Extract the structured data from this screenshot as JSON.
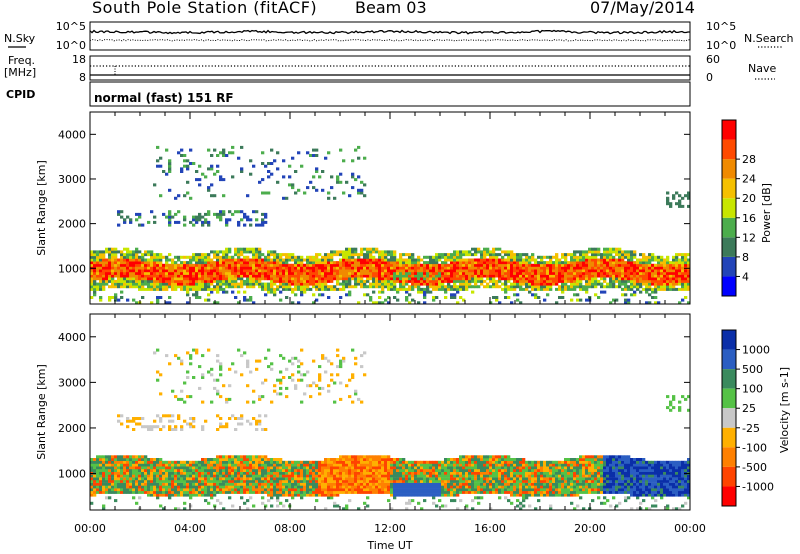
{
  "header": {
    "station": "South Pole Station (fitACF)",
    "beam": "Beam 03",
    "date": "07/May/2014"
  },
  "chart_data": [
    {
      "type": "line",
      "panel": "noise",
      "left_label": "N.Sky",
      "right_label": "N.Search",
      "yticks_left": [
        "10^5",
        "10^0"
      ],
      "yticks_right": [
        "10^5",
        "10^0"
      ]
    },
    {
      "type": "line",
      "panel": "frequency",
      "left_label_top": "Freq.",
      "left_label_bottom": "[MHz]",
      "right_label": "Nave",
      "yticks_left": [
        "18",
        "8"
      ],
      "yticks_right": [
        "60",
        "0"
      ]
    },
    {
      "type": "table",
      "panel": "cpid",
      "label": "CPID",
      "text": "normal (fast) 151 RF"
    },
    {
      "type": "heatmap",
      "panel": "power",
      "ylabel": "Slant Range [km]",
      "ylim": [
        200,
        4500
      ],
      "yticks": [
        1000,
        2000,
        3000,
        4000
      ],
      "xlim": [
        0,
        24
      ],
      "colorbar": {
        "label": "Power [dB]",
        "ticks": [
          "4",
          "8",
          "12",
          "16",
          "20",
          "24",
          "28"
        ],
        "colors": [
          "#0000ff",
          "#2244b8",
          "#3c7a5a",
          "#4cad4c",
          "#c8e600",
          "#f5c000",
          "#f08a00",
          "#ff4a00",
          "#ff0000"
        ]
      }
    },
    {
      "type": "heatmap",
      "panel": "velocity",
      "ylabel": "Slant Range [km]",
      "ylim": [
        200,
        4500
      ],
      "yticks": [
        1000,
        2000,
        3000,
        4000
      ],
      "xlim": [
        0,
        24
      ],
      "xticks": [
        "00:00",
        "04:00",
        "08:00",
        "12:00",
        "16:00",
        "20:00",
        "00:00"
      ],
      "xlabel": "Time UT",
      "colorbar": {
        "label": "Velocity [m s-1]",
        "ticks": [
          "1000",
          "500",
          "100",
          "25",
          "-25",
          "-100",
          "-500",
          "-1000"
        ],
        "colors": [
          "#0a2ea8",
          "#2b5ec2",
          "#3a8a5e",
          "#55c246",
          "#c8c8c8",
          "#ffb000",
          "#ff8000",
          "#ff4400",
          "#ff0000"
        ]
      }
    }
  ]
}
